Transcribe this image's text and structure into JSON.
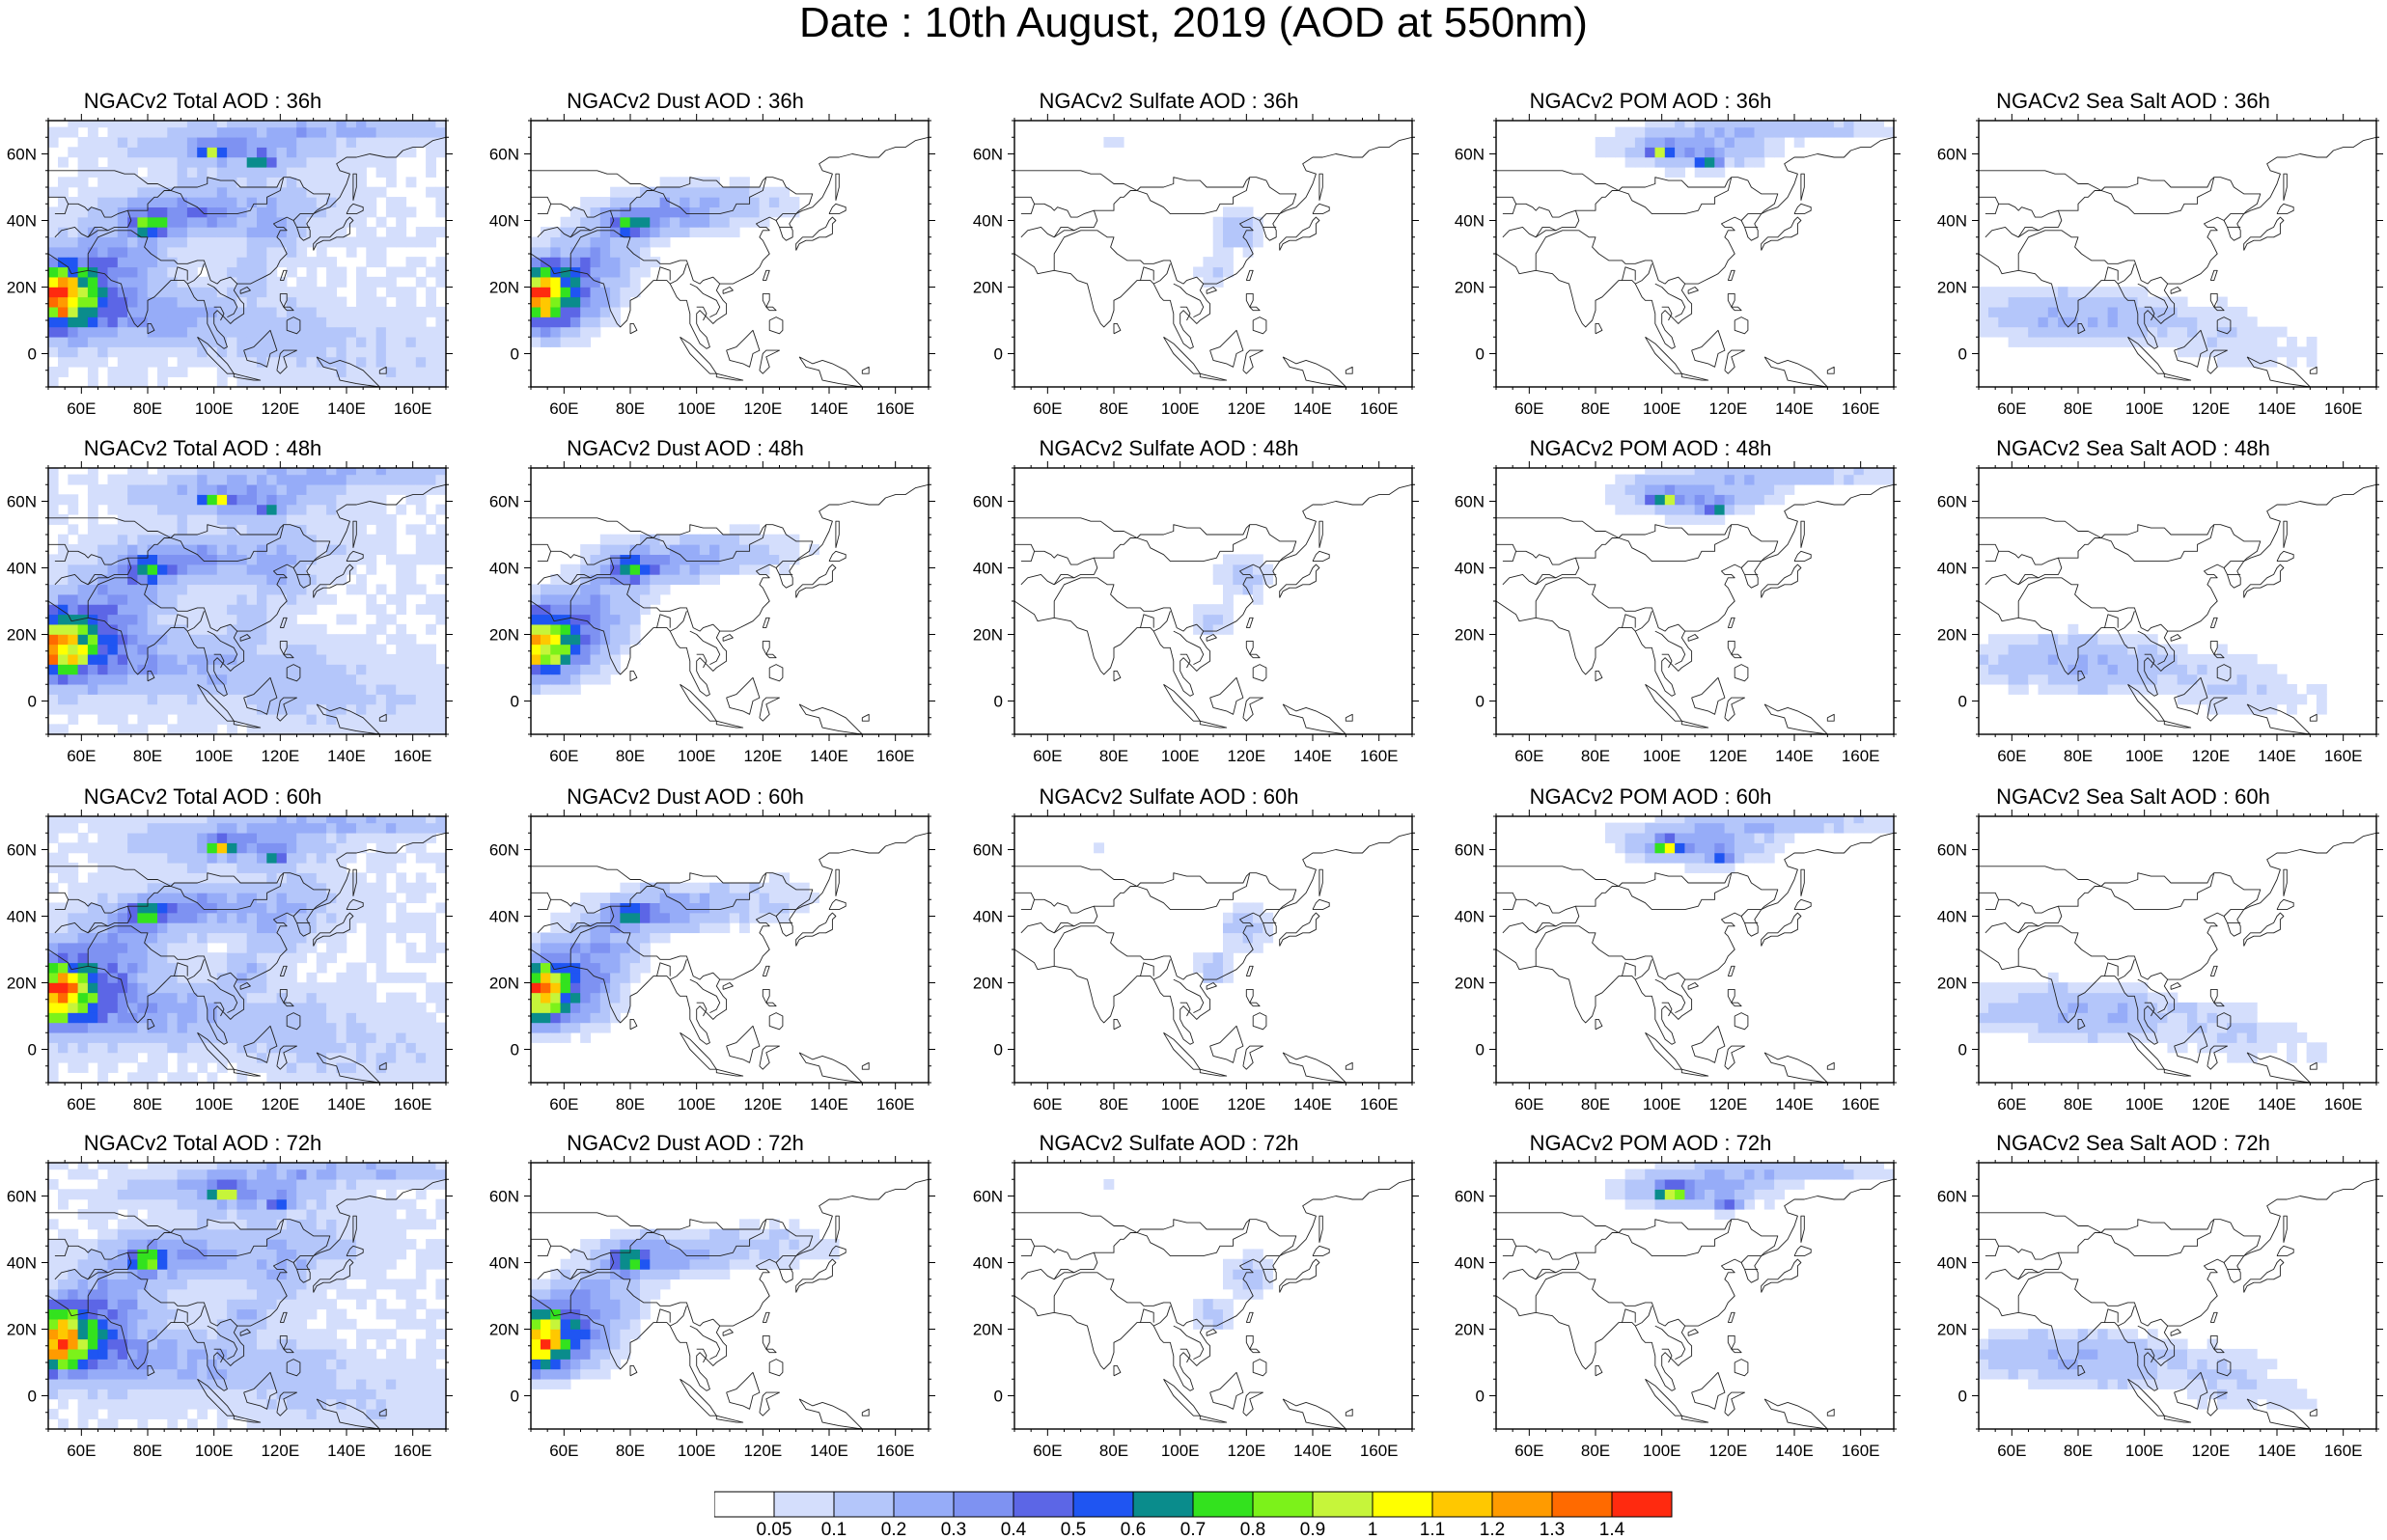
{
  "title": "Date : 10th August, 2019 (AOD at 550nm)",
  "axes": {
    "lon_ticks": [
      "60E",
      "80E",
      "100E",
      "120E",
      "140E",
      "160E"
    ],
    "lat_ticks": [
      "60N",
      "40N",
      "20N",
      "0"
    ]
  },
  "map_extent": {
    "lon": [
      50,
      170
    ],
    "lat": [
      -10,
      70
    ]
  },
  "panels": [
    [
      {
        "title": "NGACv2 Total AOD : 36h",
        "species": "total"
      },
      {
        "title": "NGACv2 Dust AOD : 36h",
        "species": "dust"
      },
      {
        "title": "NGACv2 Sulfate AOD : 36h",
        "species": "sulfate"
      },
      {
        "title": "NGACv2 POM AOD : 36h",
        "species": "pom"
      },
      {
        "title": "NGACv2 Sea Salt AOD : 36h",
        "species": "seasalt"
      }
    ],
    [
      {
        "title": "NGACv2 Total AOD : 48h",
        "species": "total"
      },
      {
        "title": "NGACv2 Dust AOD : 48h",
        "species": "dust"
      },
      {
        "title": "NGACv2 Sulfate AOD : 48h",
        "species": "sulfate"
      },
      {
        "title": "NGACv2 POM AOD : 48h",
        "species": "pom"
      },
      {
        "title": "NGACv2 Sea Salt AOD : 48h",
        "species": "seasalt"
      }
    ],
    [
      {
        "title": "NGACv2 Total AOD : 60h",
        "species": "total"
      },
      {
        "title": "NGACv2 Dust AOD : 60h",
        "species": "dust"
      },
      {
        "title": "NGACv2 Sulfate AOD : 60h",
        "species": "sulfate"
      },
      {
        "title": "NGACv2 POM AOD : 60h",
        "species": "pom"
      },
      {
        "title": "NGACv2 Sea Salt AOD : 60h",
        "species": "seasalt"
      }
    ],
    [
      {
        "title": "NGACv2 Total AOD : 72h",
        "species": "total"
      },
      {
        "title": "NGACv2 Dust AOD : 72h",
        "species": "dust"
      },
      {
        "title": "NGACv2 Sulfate AOD : 72h",
        "species": "sulfate"
      },
      {
        "title": "NGACv2 POM AOD : 72h",
        "species": "pom"
      },
      {
        "title": "NGACv2 Sea Salt  AOD : 72h",
        "species": "seasalt"
      }
    ]
  ],
  "colorbar": {
    "labels": [
      "0.05",
      "0.1",
      "0.2",
      "0.3",
      "0.4",
      "0.5",
      "0.6",
      "0.7",
      "0.8",
      "0.9",
      "1",
      "1.1",
      "1.2",
      "1.3",
      "1.4"
    ],
    "colors": [
      "#ffffff",
      "#d4defc",
      "#b4c6fa",
      "#96acf8",
      "#7e92f2",
      "#5c66e6",
      "#1f55f2",
      "#0a8c8c",
      "#33e21e",
      "#7cf21a",
      "#c6f53a",
      "#ffff00",
      "#ffc800",
      "#ff9b00",
      "#ff6a00",
      "#ff2a0f"
    ]
  }
}
